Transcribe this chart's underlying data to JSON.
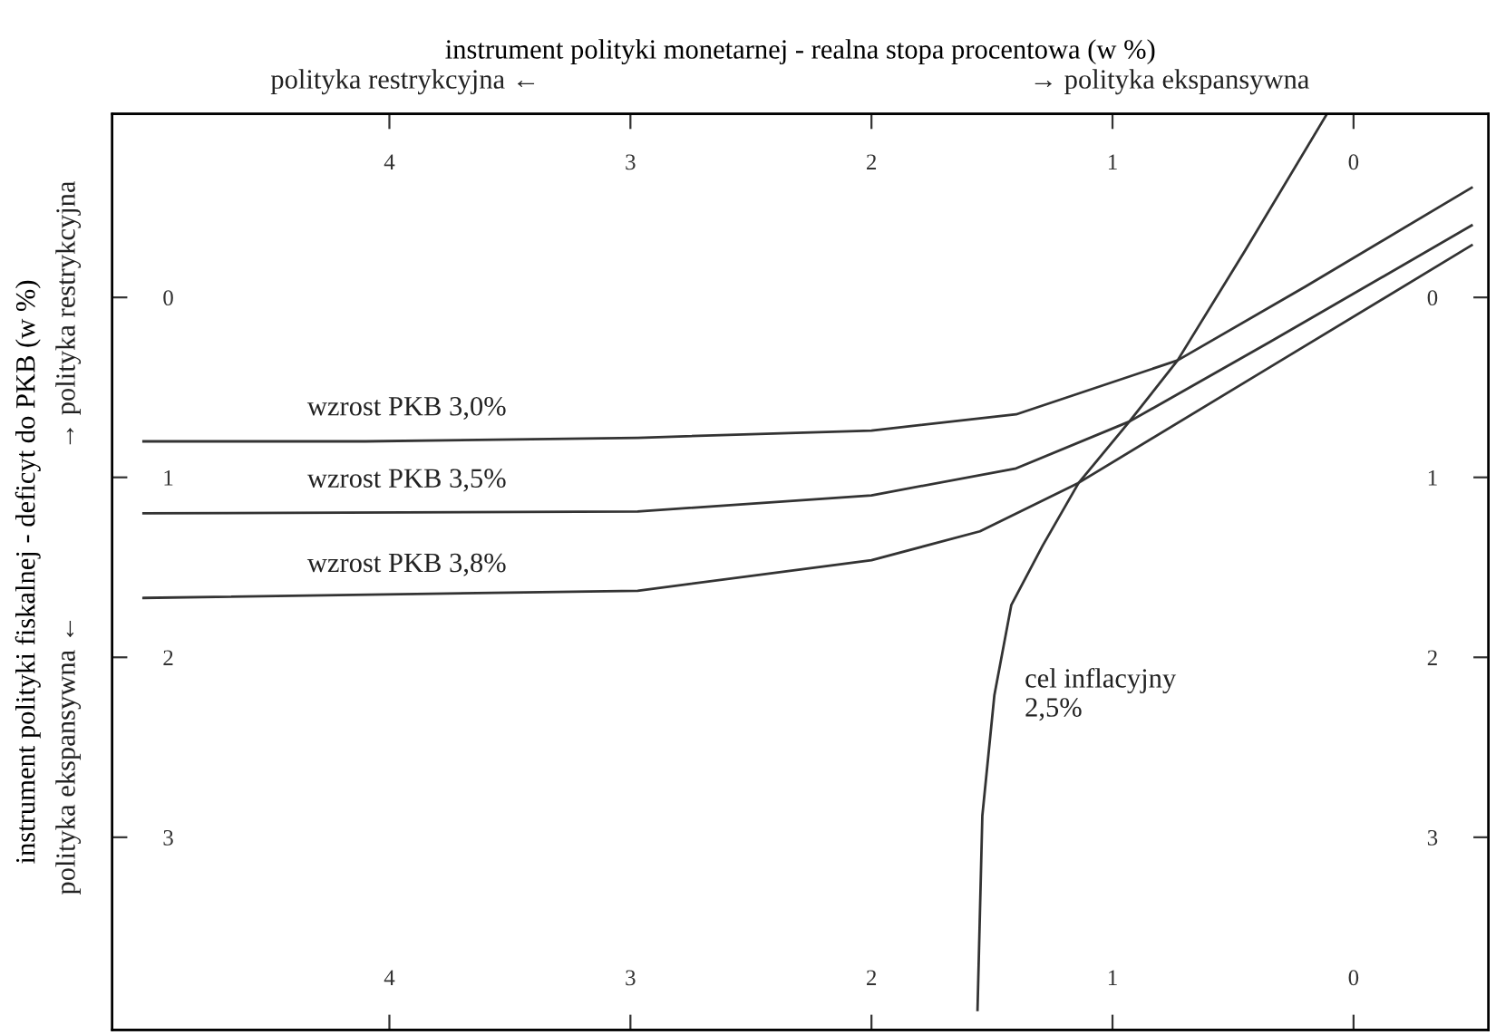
{
  "chart_data": {
    "type": "line",
    "x2label": "instrument polityki monetarnej - realna stopa procentowa (w %)",
    "ylabel": "instrument polityki fiskalnej - deficyt do PKB (w %)",
    "annotations": [
      "polityka restrykcyjna ←",
      "→ polityka ekspansywna",
      "polityka ekspansywna ←",
      "→ polityka restrykcyjna"
    ],
    "xlim": [
      5.15,
      -0.56
    ],
    "xticks": [
      4,
      3,
      2,
      1,
      0
    ],
    "x2lim": [
      5.15,
      -0.56
    ],
    "x2ticks": [
      4,
      3,
      2,
      1,
      0
    ],
    "ylim": [
      4.07,
      -1.02
    ],
    "yticks": [
      0,
      1,
      2,
      3
    ],
    "y2lim": [
      4.07,
      -1.02
    ],
    "y2ticks": [
      0,
      1,
      2,
      3
    ],
    "grid": false,
    "legend": false,
    "marker": "none",
    "line_style": "solid",
    "series": [
      {
        "name": "wzrost PKB 3,0%",
        "color": "#333333",
        "x": [
          5.02,
          4.1,
          2.97,
          2.0,
          1.4,
          0.73,
          0.2,
          -0.49
        ],
        "values": [
          0.8,
          0.8,
          0.78,
          0.74,
          0.65,
          0.35,
          -0.06,
          -0.61
        ]
      },
      {
        "name": "wzrost PKB 3,5%",
        "color": "#333333",
        "x": [
          5.02,
          2.97,
          2.0,
          1.4,
          0.93,
          0.35,
          -0.49
        ],
        "values": [
          1.2,
          1.19,
          1.1,
          0.95,
          0.69,
          0.25,
          -0.4
        ]
      },
      {
        "name": "wzrost PKB 3,8%",
        "color": "#333333",
        "x": [
          5.02,
          2.97,
          2.0,
          1.55,
          1.14,
          0.35,
          -0.49
        ],
        "values": [
          1.67,
          1.63,
          1.46,
          1.3,
          1.03,
          0.39,
          -0.29
        ]
      },
      {
        "name": "cel inflacyjny\n2,5%",
        "color": "#333333",
        "x": [
          0.11,
          0.45,
          0.73,
          0.93,
          1.14,
          1.29,
          1.42,
          1.49,
          1.54,
          1.56
        ],
        "values": [
          -1.02,
          -0.26,
          0.35,
          0.69,
          1.03,
          1.38,
          1.71,
          2.21,
          2.88,
          3.96
        ]
      }
    ]
  }
}
